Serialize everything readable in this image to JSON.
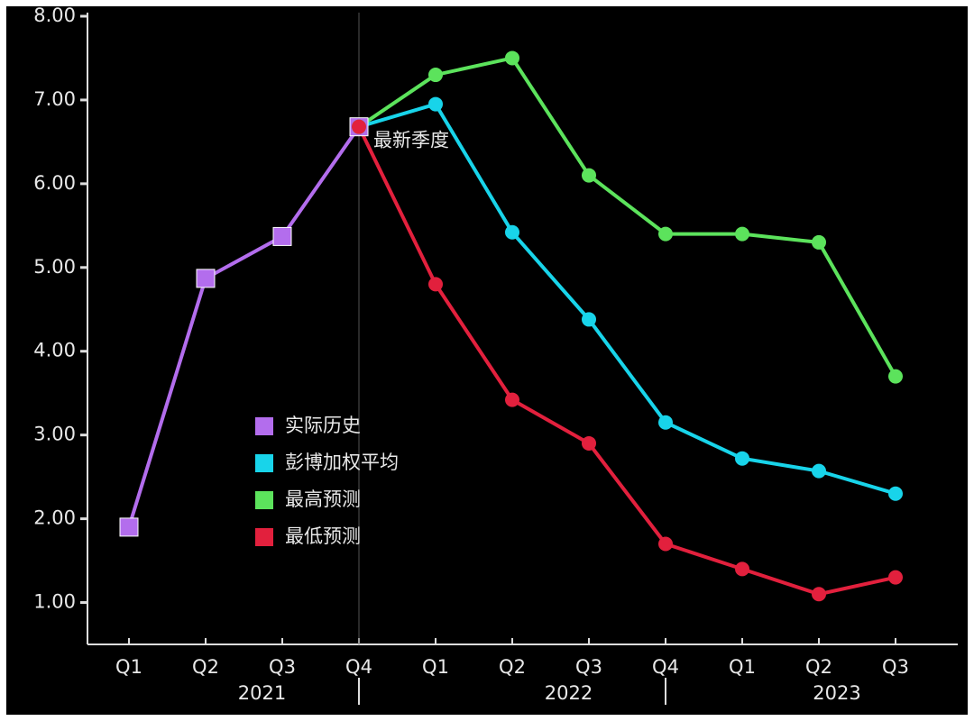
{
  "chart_data": {
    "type": "line",
    "categories": [
      "Q1",
      "Q2",
      "Q3",
      "Q4",
      "Q1",
      "Q2",
      "Q3",
      "Q4",
      "Q1",
      "Q2",
      "Q3"
    ],
    "x_groups": [
      "2021",
      "2022",
      "2023"
    ],
    "series": [
      {
        "name": "实际历史",
        "color": "#b36ded",
        "marker": "square",
        "values": [
          1.9,
          4.87,
          5.37,
          6.68,
          null,
          null,
          null,
          null,
          null,
          null,
          null
        ]
      },
      {
        "name": "彭博加权平均",
        "color": "#18d4ea",
        "marker": "circle",
        "values": [
          null,
          null,
          null,
          6.68,
          6.95,
          5.42,
          4.38,
          3.15,
          2.72,
          2.57,
          2.3
        ]
      },
      {
        "name": "最高预测",
        "color": "#5ce35c",
        "marker": "circle",
        "values": [
          null,
          null,
          null,
          6.68,
          7.3,
          7.5,
          6.1,
          5.4,
          5.4,
          5.3,
          3.7
        ]
      },
      {
        "name": "最低预测",
        "color": "#e2203d",
        "marker": "circle",
        "values": [
          null,
          null,
          null,
          6.68,
          4.8,
          3.42,
          2.9,
          1.7,
          1.4,
          1.1,
          1.3
        ]
      }
    ],
    "annotation": "最新季度",
    "ylim": [
      0.5,
      8.0
    ],
    "yticks": [
      {
        "value": 1,
        "label": "1.00"
      },
      {
        "value": 2,
        "label": "2.00"
      },
      {
        "value": 3,
        "label": "3.00"
      },
      {
        "value": 4,
        "label": "4.00"
      },
      {
        "value": 5,
        "label": "5.00"
      },
      {
        "value": 6,
        "label": "6.00"
      },
      {
        "value": 7,
        "label": "7.00"
      },
      {
        "value": 8,
        "label": "8.00"
      }
    ]
  }
}
